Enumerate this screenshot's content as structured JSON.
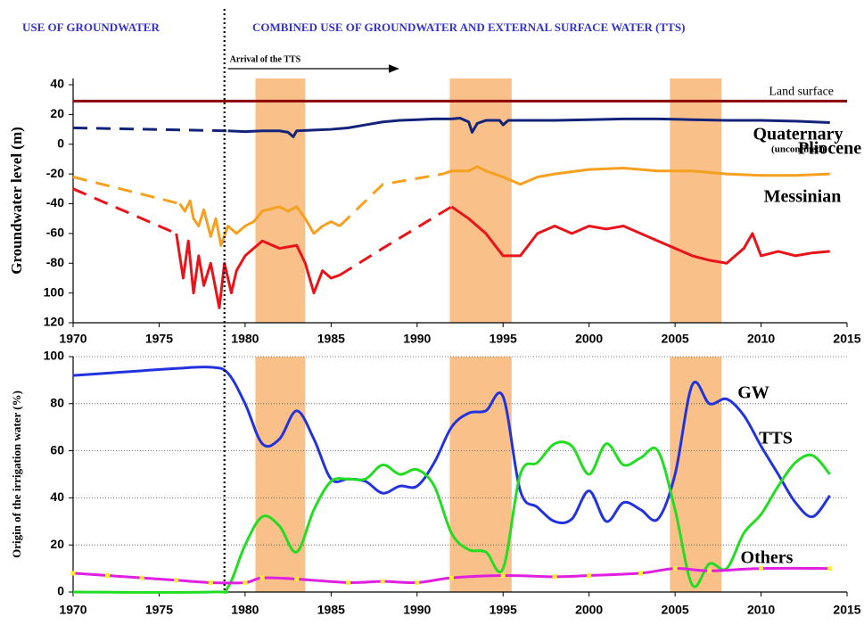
{
  "chart_data": [
    {
      "type": "line",
      "headers": [
        "USE OF GROUNDWATER",
        "COMBINED USE OF GROUNDWATER AND EXTERNAL SURFACE WATER (TTS)"
      ],
      "ylabel": "Groundwater level (m)",
      "xlim": [
        1970,
        2015
      ],
      "xticks": [
        1970,
        1975,
        1980,
        1985,
        1990,
        1995,
        2000,
        2005,
        2010,
        2015
      ],
      "ylim": [
        -120,
        40
      ],
      "yticks": [
        40,
        20,
        0,
        -20,
        -40,
        -60,
        -80,
        {
          "value": -100,
          "label": "100"
        },
        {
          "value": -120,
          "label": "120"
        }
      ],
      "divider": 1978.8,
      "arrow": {
        "label": "Arrival of the TTS",
        "x": [
          1979,
          1988.9
        ]
      },
      "periods": [
        [
          1980.6,
          1983.5
        ],
        [
          1991.9,
          1995.5
        ],
        [
          2004.7,
          2007.7
        ]
      ],
      "period_color": "#f9c08a",
      "interpolated_dashed": true,
      "reference": {
        "name": "Land surface",
        "value": 29,
        "color": "#8b0000"
      },
      "series": [
        {
          "name": "Quaternary",
          "note": "(unconfined)",
          "color": "#14237a",
          "x": [
            1970,
            1979,
            1980,
            1981,
            1982,
            1982.5,
            1982.8,
            1983,
            1984,
            1985,
            1986,
            1987,
            1988,
            1989,
            1990,
            1991,
            1992,
            1992.5,
            1993,
            1993.2,
            1993.5,
            1994,
            1994.8,
            1995,
            1995.3,
            1996,
            1998,
            2000,
            2002,
            2004,
            2006,
            2008,
            2010,
            2012,
            2014
          ],
          "values": [
            11,
            9,
            8.5,
            9,
            9,
            8,
            5,
            9,
            9.5,
            10,
            11,
            13,
            15,
            16,
            16.5,
            17,
            17,
            17.5,
            15,
            8,
            14,
            16,
            16,
            13,
            16,
            16,
            16,
            16.5,
            17,
            17,
            16.5,
            16,
            16,
            15.5,
            14.5
          ]
        },
        {
          "name": "Pliocene",
          "color": "#f5a01e",
          "x": [
            1970,
            1976.2,
            1976.5,
            1976.8,
            1977,
            1977.3,
            1977.6,
            1978,
            1978.3,
            1978.6,
            1979,
            1979.5,
            1980,
            1980.5,
            1981,
            1982,
            1982.5,
            1983,
            1983.5,
            1984,
            1984.5,
            1985,
            1985.5,
            1988,
            1991.5,
            1992,
            1993,
            1993.5,
            1994,
            1995,
            1996,
            1997,
            1998,
            2000,
            2002,
            2004,
            2006,
            2008,
            2010,
            2012,
            2014
          ],
          "values": [
            -22,
            -40,
            -45,
            -38,
            -50,
            -55,
            -44,
            -62,
            -50,
            -68,
            -55,
            -60,
            -55,
            -52,
            -45,
            -42,
            -45,
            -42,
            -50,
            -60,
            -55,
            -52,
            -55,
            -27,
            -20,
            -18,
            -18,
            -15,
            -18,
            -22,
            -27,
            -22,
            -20,
            -17,
            -16,
            -18,
            -18,
            -20,
            -21,
            -21,
            -20
          ]
        },
        {
          "name": "Messinian",
          "color": "#e8141a",
          "x": [
            1970,
            1976,
            1976.4,
            1976.7,
            1977,
            1977.3,
            1977.6,
            1978,
            1978.5,
            1978.8,
            1979.2,
            1979.5,
            1980,
            1981,
            1982,
            1983,
            1983.5,
            1984,
            1984.5,
            1985,
            1985.5,
            1988,
            1992,
            1993,
            1994,
            1995,
            1996,
            1997,
            1998,
            1999,
            2000,
            2001,
            2002,
            2003,
            2004,
            2005,
            2006,
            2007,
            2008,
            2009,
            2009.5,
            2010,
            2011,
            2012,
            2013,
            2014
          ],
          "values": [
            -30,
            -60,
            -90,
            -65,
            -100,
            -75,
            -95,
            -80,
            -110,
            -80,
            -100,
            -85,
            -75,
            -65,
            -70,
            -68,
            -80,
            -100,
            -85,
            -90,
            -88,
            -70,
            -42,
            -50,
            -60,
            -75,
            -75,
            -60,
            -55,
            -60,
            -55,
            -57,
            -55,
            -60,
            -65,
            -70,
            -75,
            -78,
            -80,
            -70,
            -60,
            -75,
            -72,
            -75,
            -73,
            -72
          ]
        }
      ]
    },
    {
      "type": "line",
      "ylabel": "Origin of the irrigation water (%)",
      "xlim": [
        1970,
        2015
      ],
      "xticks": [
        1970,
        1975,
        1980,
        1985,
        1990,
        1995,
        2000,
        2005,
        2010,
        2015
      ],
      "ylim": [
        0,
        100
      ],
      "yticks": [
        0,
        20,
        40,
        60,
        80,
        100
      ],
      "grid": true,
      "smooth": true,
      "series": [
        {
          "name": "GW",
          "color": "#2233dd",
          "x": [
            1970,
            1972,
            1974,
            1976,
            1978,
            1979,
            1980,
            1981,
            1982,
            1983,
            1984,
            1985,
            1986,
            1987,
            1988,
            1989,
            1990,
            1991,
            1992,
            1993,
            1994,
            1995,
            1996,
            1997,
            1998,
            1999,
            2000,
            2001,
            2002,
            2003,
            2004,
            2005,
            2006,
            2007,
            2008,
            2009,
            2010,
            2011,
            2012,
            2013,
            2014
          ],
          "values": [
            92,
            93,
            94,
            95,
            95.5,
            93,
            80,
            63,
            65,
            77,
            65,
            48,
            48,
            47,
            42,
            45,
            45,
            55,
            70,
            76,
            77,
            83,
            43,
            36,
            30,
            31,
            43,
            30,
            38,
            35,
            31,
            50,
            88,
            80,
            82,
            75,
            62,
            50,
            38,
            32,
            41
          ]
        },
        {
          "name": "TTS",
          "color": "#22dd22",
          "x": [
            1970,
            1978,
            1979,
            1980,
            1981,
            1982,
            1983,
            1984,
            1985,
            1986,
            1987,
            1988,
            1989,
            1990,
            1991,
            1992,
            1993,
            1994,
            1995,
            1996,
            1997,
            1998,
            1999,
            2000,
            2001,
            2002,
            2003,
            2004,
            2005,
            2006,
            2007,
            2008,
            2009,
            2010,
            2011,
            2012,
            2013,
            2014
          ],
          "values": [
            0,
            0,
            2,
            20,
            32,
            28,
            17,
            35,
            47,
            48,
            48,
            54,
            50,
            52,
            45,
            25,
            18,
            17,
            10,
            50,
            55,
            63,
            62,
            50,
            63,
            54,
            57,
            60,
            35,
            3,
            12,
            10,
            25,
            33,
            45,
            55,
            58,
            50
          ]
        },
        {
          "name": "Others",
          "color": "#e020e0",
          "marker_color": "#ffee33",
          "x": [
            1970,
            1972,
            1974,
            1976,
            1978,
            1980,
            1981,
            1983,
            1986,
            1988,
            1990,
            1992,
            1995,
            1998,
            2000,
            2003,
            2005,
            2007,
            2010,
            2014
          ],
          "values": [
            8,
            7,
            6,
            5,
            4,
            4,
            6,
            5.5,
            4,
            4.5,
            4,
            6,
            7,
            6.5,
            7,
            8,
            10,
            9,
            10,
            10
          ]
        }
      ]
    }
  ]
}
